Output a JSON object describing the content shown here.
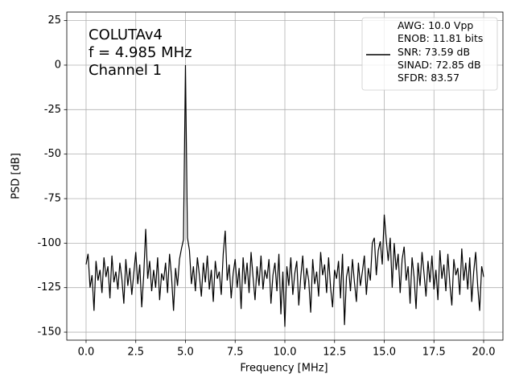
{
  "chart_data": {
    "type": "line",
    "annotation": [
      "COLUTAv4",
      "f = 4.985 MHz",
      "Channel 1"
    ],
    "xlabel": "Frequency [MHz]",
    "ylabel": "PSD [dB]",
    "x": [
      0,
      0.1,
      0.2,
      0.3,
      0.4,
      0.5,
      0.6,
      0.7,
      0.8,
      0.9,
      1,
      1.1,
      1.2,
      1.3,
      1.4,
      1.5,
      1.6,
      1.7,
      1.8,
      1.9,
      2,
      2.1,
      2.2,
      2.3,
      2.4,
      2.5,
      2.6,
      2.7,
      2.8,
      2.9,
      3,
      3.1,
      3.2,
      3.3,
      3.4,
      3.5,
      3.6,
      3.7,
      3.8,
      3.9,
      4,
      4.1,
      4.2,
      4.3,
      4.4,
      4.5,
      4.6,
      4.7,
      4.8,
      4.9,
      5,
      5.1,
      5.2,
      5.3,
      5.4,
      5.5,
      5.6,
      5.7,
      5.8,
      5.9,
      6,
      6.1,
      6.2,
      6.3,
      6.4,
      6.5,
      6.6,
      6.7,
      6.8,
      6.9,
      7,
      7.1,
      7.2,
      7.3,
      7.4,
      7.5,
      7.6,
      7.7,
      7.8,
      7.9,
      8,
      8.1,
      8.2,
      8.3,
      8.4,
      8.5,
      8.6,
      8.7,
      8.8,
      8.9,
      9,
      9.1,
      9.2,
      9.3,
      9.4,
      9.5,
      9.6,
      9.7,
      9.8,
      9.9,
      10,
      10.1,
      10.2,
      10.3,
      10.4,
      10.5,
      10.6,
      10.7,
      10.8,
      10.9,
      11,
      11.1,
      11.2,
      11.3,
      11.4,
      11.5,
      11.6,
      11.7,
      11.8,
      11.9,
      12,
      12.1,
      12.2,
      12.3,
      12.4,
      12.5,
      12.6,
      12.7,
      12.8,
      12.9,
      13,
      13.1,
      13.2,
      13.3,
      13.4,
      13.5,
      13.6,
      13.7,
      13.8,
      13.9,
      14,
      14.1,
      14.2,
      14.3,
      14.4,
      14.5,
      14.6,
      14.7,
      14.8,
      14.9,
      15,
      15.1,
      15.2,
      15.3,
      15.4,
      15.5,
      15.6,
      15.7,
      15.8,
      15.9,
      16,
      16.1,
      16.2,
      16.3,
      16.4,
      16.5,
      16.6,
      16.7,
      16.8,
      16.9,
      17,
      17.1,
      17.2,
      17.3,
      17.4,
      17.5,
      17.6,
      17.7,
      17.8,
      17.9,
      18,
      18.1,
      18.2,
      18.3,
      18.4,
      18.5,
      18.6,
      18.7,
      18.8,
      18.9,
      19,
      19.1,
      19.2,
      19.3,
      19.4,
      19.5,
      19.6,
      19.7,
      19.8,
      19.9,
      20
    ],
    "series": [
      {
        "name": "AWG: 10.0 Vpp\nENOB: 11.81 bits\nSNR: 73.59 dB\nSINAD: 72.85 dB\nSFDR: 83.57",
        "color": "#000000",
        "values": [
          -112,
          -106,
          -125,
          -118,
          -138,
          -110,
          -121,
          -115,
          -128,
          -108,
          -119,
          -113,
          -131,
          -107,
          -122,
          -116,
          -126,
          -111,
          -120,
          -134,
          -109,
          -124,
          -114,
          -129,
          -117,
          -105,
          -123,
          -112,
          -136,
          -118,
          -92,
          -120,
          -110,
          -127,
          -115,
          -125,
          -108,
          -132,
          -117,
          -121,
          -111,
          -128,
          -106,
          -119,
          -138,
          -114,
          -124,
          -109,
          -103,
          -98,
          0,
          -97,
          -104,
          -123,
          -113,
          -127,
          -108,
          -118,
          -130,
          -111,
          -122,
          -107,
          -126,
          -115,
          -133,
          -110,
          -120,
          -116,
          -129,
          -106,
          -93,
          -121,
          -112,
          -131,
          -117,
          -109,
          -125,
          -114,
          -137,
          -108,
          -123,
          -111,
          -128,
          -105,
          -119,
          -132,
          -113,
          -124,
          -107,
          -126,
          -115,
          -120,
          -109,
          -134,
          -118,
          -111,
          -127,
          -106,
          -140,
          -116,
          -147,
          -113,
          -124,
          -108,
          -129,
          -117,
          -110,
          -135,
          -119,
          -107,
          -126,
          -114,
          -121,
          -139,
          -109,
          -123,
          -116,
          -130,
          -105,
          -118,
          -112,
          -128,
          -108,
          -125,
          -136,
          -115,
          -120,
          -110,
          -131,
          -106,
          -146,
          -119,
          -113,
          -127,
          -109,
          -122,
          -133,
          -111,
          -124,
          -116,
          -107,
          -129,
          -114,
          -121,
          -100,
          -97,
          -118,
          -104,
          -99,
          -112,
          -84,
          -98,
          -110,
          -97,
          -125,
          -100,
          -115,
          -106,
          -128,
          -109,
          -102,
          -121,
          -113,
          -134,
          -108,
          -119,
          -137,
          -111,
          -124,
          -105,
          -117,
          -130,
          -110,
          -122,
          -107,
          -126,
          -115,
          -132,
          -104,
          -120,
          -112,
          -127,
          -106,
          -123,
          -135,
          -109,
          -118,
          -114,
          -129,
          -103,
          -121,
          -111,
          -126,
          -108,
          -133,
          -116,
          -105,
          -124,
          -138,
          -113,
          -119
        ]
      }
    ],
    "xlim": [
      -0.97,
      20.97
    ],
    "ylim": [
      -154.5,
      29.8
    ],
    "xticks": [
      {
        "value": 0,
        "label": "0.0"
      },
      2.5,
      {
        "value": 5,
        "label": "5.0"
      },
      7.5,
      {
        "value": 10,
        "label": "10.0"
      },
      12.5,
      {
        "value": 15,
        "label": "15.0"
      },
      17.5,
      {
        "value": 20,
        "label": "20.0"
      }
    ],
    "yticks": [
      25,
      0,
      -25,
      -50,
      -75,
      -100,
      -125,
      -150
    ],
    "grid": true,
    "legend": "upper right"
  }
}
